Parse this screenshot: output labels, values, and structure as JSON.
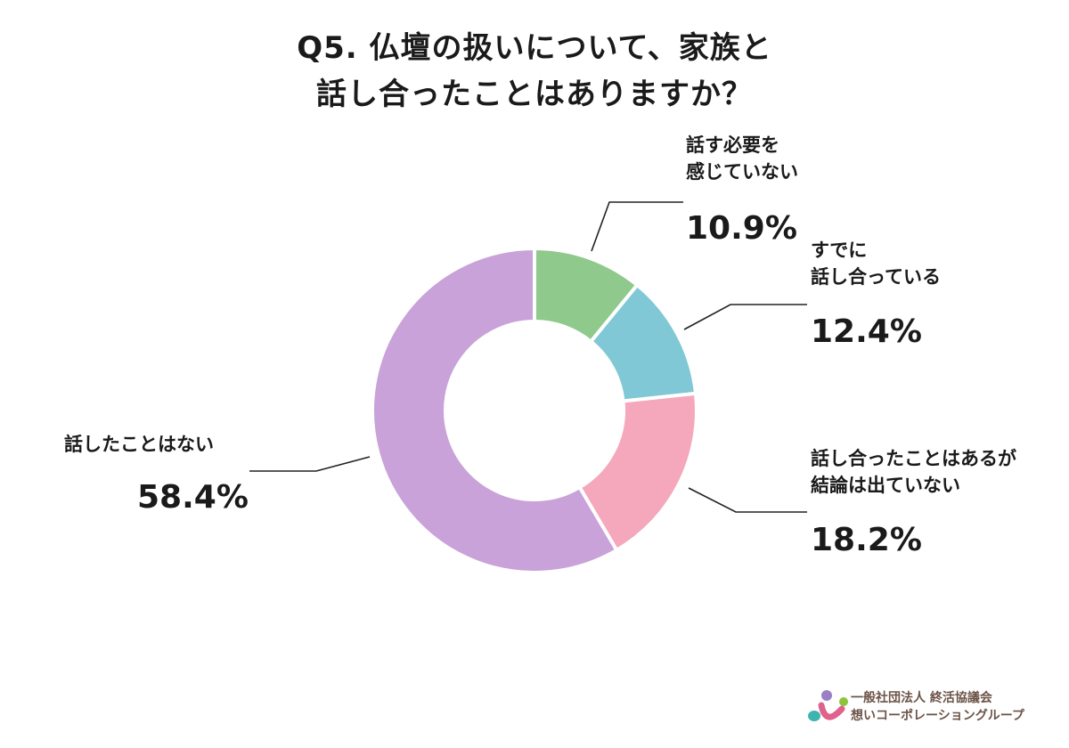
{
  "title": {
    "line1": "Q5. 仏壇の扱いについて、家族と",
    "line2": "話し合ったことはありますか？"
  },
  "chart_data": {
    "type": "pie",
    "variant": "donut",
    "title": "Q5. 仏壇の扱いについて、家族と話し合ったことはありますか？",
    "categories": [
      "話す必要を感じていない",
      "すでに話し合っている",
      "話し合ったことはあるが結論は出ていない",
      "話したことはない"
    ],
    "values": [
      10.9,
      12.4,
      18.2,
      58.4
    ],
    "unit": "%",
    "colors": [
      "#8fc98c",
      "#80c8d6",
      "#f5a7bc",
      "#c8a2d8"
    ],
    "start_angle_deg": 0,
    "direction": "clockwise",
    "legend": "none (callout labels)"
  },
  "labels": [
    {
      "lines": [
        "話す必要を",
        "感じていない"
      ],
      "pct": "10.9%"
    },
    {
      "lines": [
        "すでに",
        "話し合っている"
      ],
      "pct": "12.4%"
    },
    {
      "lines": [
        "話し合ったことはあるが",
        "結論は出ていない"
      ],
      "pct": "18.2%"
    },
    {
      "lines": [
        "話したことはない"
      ],
      "pct": "58.4%"
    }
  ],
  "logo": {
    "line1": "一般社団法人 終活協議会",
    "line2": "想いコーポレーショングループ",
    "colors": {
      "purple": "#9b7fc4",
      "green": "#8cc43a",
      "teal": "#3fb3ad",
      "pink": "#e0608e"
    }
  }
}
